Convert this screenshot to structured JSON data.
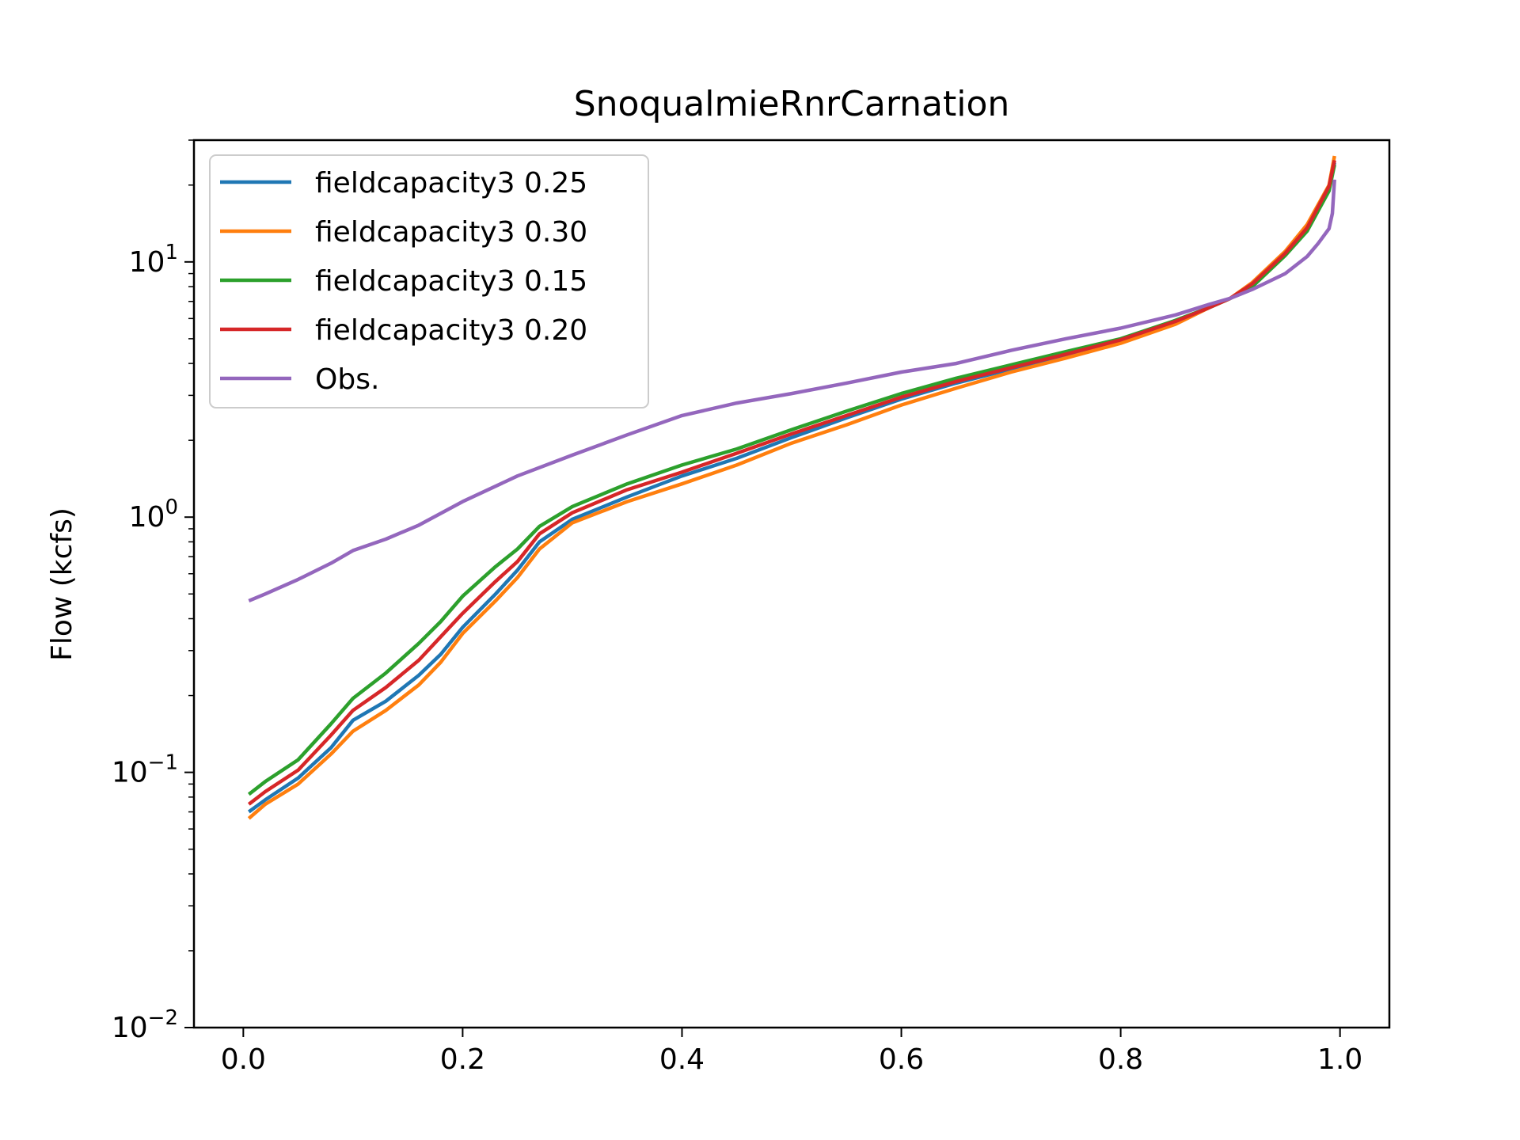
{
  "chart_data": {
    "type": "line",
    "title": "SnoqualmieRnrCarnation",
    "xlabel": "",
    "ylabel": "Flow (kcfs)",
    "yscale": "log",
    "xlim": [
      -0.045,
      1.045
    ],
    "ylim": [
      0.01,
      30
    ],
    "grid": false,
    "legend_position": "top-left",
    "x_ticks": [
      "0.0",
      "0.2",
      "0.4",
      "0.6",
      "0.8",
      "1.0"
    ],
    "y_ticks": [
      {
        "base": "10",
        "exp": "−2",
        "value": 0.01
      },
      {
        "base": "10",
        "exp": "−1",
        "value": 0.1
      },
      {
        "base": "10",
        "exp": "0",
        "value": 1
      },
      {
        "base": "10",
        "exp": "1",
        "value": 10
      }
    ],
    "series": [
      {
        "name": "fieldcapacity3 0.25",
        "color": "#1f77b4",
        "points": [
          [
            0.005,
            0.07
          ],
          [
            0.02,
            0.078
          ],
          [
            0.05,
            0.095
          ],
          [
            0.08,
            0.125
          ],
          [
            0.1,
            0.16
          ],
          [
            0.13,
            0.19
          ],
          [
            0.16,
            0.24
          ],
          [
            0.18,
            0.29
          ],
          [
            0.2,
            0.37
          ],
          [
            0.23,
            0.5
          ],
          [
            0.25,
            0.62
          ],
          [
            0.27,
            0.8
          ],
          [
            0.3,
            0.98
          ],
          [
            0.35,
            1.2
          ],
          [
            0.4,
            1.45
          ],
          [
            0.45,
            1.7
          ],
          [
            0.5,
            2.05
          ],
          [
            0.55,
            2.45
          ],
          [
            0.6,
            2.9
          ],
          [
            0.65,
            3.35
          ],
          [
            0.7,
            3.8
          ],
          [
            0.75,
            4.3
          ],
          [
            0.8,
            4.9
          ],
          [
            0.85,
            5.9
          ],
          [
            0.88,
            6.6
          ],
          [
            0.9,
            7.2
          ],
          [
            0.92,
            8.0
          ],
          [
            0.95,
            10.8
          ],
          [
            0.97,
            13.5
          ],
          [
            0.99,
            19.5
          ],
          [
            0.995,
            24.5
          ]
        ]
      },
      {
        "name": "fieldcapacity3 0.30",
        "color": "#ff7f0e",
        "points": [
          [
            0.005,
            0.066
          ],
          [
            0.02,
            0.075
          ],
          [
            0.05,
            0.09
          ],
          [
            0.08,
            0.118
          ],
          [
            0.1,
            0.145
          ],
          [
            0.13,
            0.175
          ],
          [
            0.16,
            0.22
          ],
          [
            0.18,
            0.27
          ],
          [
            0.2,
            0.35
          ],
          [
            0.23,
            0.47
          ],
          [
            0.25,
            0.58
          ],
          [
            0.27,
            0.75
          ],
          [
            0.3,
            0.95
          ],
          [
            0.35,
            1.15
          ],
          [
            0.4,
            1.35
          ],
          [
            0.45,
            1.6
          ],
          [
            0.5,
            1.95
          ],
          [
            0.55,
            2.3
          ],
          [
            0.6,
            2.75
          ],
          [
            0.65,
            3.2
          ],
          [
            0.7,
            3.7
          ],
          [
            0.75,
            4.2
          ],
          [
            0.8,
            4.8
          ],
          [
            0.85,
            5.7
          ],
          [
            0.88,
            6.6
          ],
          [
            0.9,
            7.2
          ],
          [
            0.92,
            8.3
          ],
          [
            0.95,
            11
          ],
          [
            0.97,
            14
          ],
          [
            0.99,
            20
          ],
          [
            0.995,
            26
          ]
        ]
      },
      {
        "name": "fieldcapacity3 0.15",
        "color": "#2ca02c",
        "points": [
          [
            0.005,
            0.082
          ],
          [
            0.02,
            0.092
          ],
          [
            0.05,
            0.112
          ],
          [
            0.08,
            0.155
          ],
          [
            0.1,
            0.195
          ],
          [
            0.13,
            0.245
          ],
          [
            0.16,
            0.32
          ],
          [
            0.18,
            0.39
          ],
          [
            0.2,
            0.49
          ],
          [
            0.23,
            0.64
          ],
          [
            0.25,
            0.75
          ],
          [
            0.27,
            0.92
          ],
          [
            0.3,
            1.1
          ],
          [
            0.35,
            1.35
          ],
          [
            0.4,
            1.6
          ],
          [
            0.45,
            1.85
          ],
          [
            0.5,
            2.2
          ],
          [
            0.55,
            2.6
          ],
          [
            0.6,
            3.05
          ],
          [
            0.65,
            3.5
          ],
          [
            0.7,
            3.95
          ],
          [
            0.75,
            4.45
          ],
          [
            0.8,
            5.0
          ],
          [
            0.85,
            5.9
          ],
          [
            0.88,
            6.6
          ],
          [
            0.9,
            7.2
          ],
          [
            0.92,
            8.0
          ],
          [
            0.95,
            10.6
          ],
          [
            0.97,
            13.2
          ],
          [
            0.99,
            19
          ],
          [
            0.995,
            24
          ]
        ]
      },
      {
        "name": "fieldcapacity3 0.20",
        "color": "#d62728",
        "points": [
          [
            0.005,
            0.075
          ],
          [
            0.02,
            0.084
          ],
          [
            0.05,
            0.102
          ],
          [
            0.08,
            0.14
          ],
          [
            0.1,
            0.175
          ],
          [
            0.13,
            0.215
          ],
          [
            0.16,
            0.275
          ],
          [
            0.18,
            0.34
          ],
          [
            0.2,
            0.42
          ],
          [
            0.23,
            0.56
          ],
          [
            0.25,
            0.67
          ],
          [
            0.27,
            0.86
          ],
          [
            0.3,
            1.04
          ],
          [
            0.35,
            1.28
          ],
          [
            0.4,
            1.5
          ],
          [
            0.45,
            1.78
          ],
          [
            0.5,
            2.12
          ],
          [
            0.55,
            2.5
          ],
          [
            0.6,
            2.95
          ],
          [
            0.65,
            3.4
          ],
          [
            0.7,
            3.85
          ],
          [
            0.75,
            4.35
          ],
          [
            0.8,
            4.95
          ],
          [
            0.85,
            5.85
          ],
          [
            0.88,
            6.6
          ],
          [
            0.9,
            7.2
          ],
          [
            0.92,
            8.2
          ],
          [
            0.95,
            10.8
          ],
          [
            0.97,
            13.6
          ],
          [
            0.99,
            19.8
          ],
          [
            0.995,
            25
          ]
        ]
      },
      {
        "name": "Obs.",
        "color": "#9467bd",
        "points": [
          [
            0.005,
            0.47
          ],
          [
            0.02,
            0.5
          ],
          [
            0.05,
            0.57
          ],
          [
            0.08,
            0.66
          ],
          [
            0.1,
            0.74
          ],
          [
            0.13,
            0.82
          ],
          [
            0.16,
            0.93
          ],
          [
            0.2,
            1.15
          ],
          [
            0.25,
            1.45
          ],
          [
            0.3,
            1.75
          ],
          [
            0.35,
            2.1
          ],
          [
            0.4,
            2.5
          ],
          [
            0.45,
            2.8
          ],
          [
            0.5,
            3.05
          ],
          [
            0.55,
            3.35
          ],
          [
            0.6,
            3.7
          ],
          [
            0.65,
            4.0
          ],
          [
            0.7,
            4.5
          ],
          [
            0.75,
            5.0
          ],
          [
            0.8,
            5.5
          ],
          [
            0.85,
            6.2
          ],
          [
            0.88,
            6.8
          ],
          [
            0.9,
            7.2
          ],
          [
            0.92,
            7.8
          ],
          [
            0.95,
            9.0
          ],
          [
            0.97,
            10.5
          ],
          [
            0.98,
            11.8
          ],
          [
            0.99,
            13.5
          ],
          [
            0.993,
            15.5
          ],
          [
            0.995,
            21
          ]
        ]
      }
    ]
  }
}
